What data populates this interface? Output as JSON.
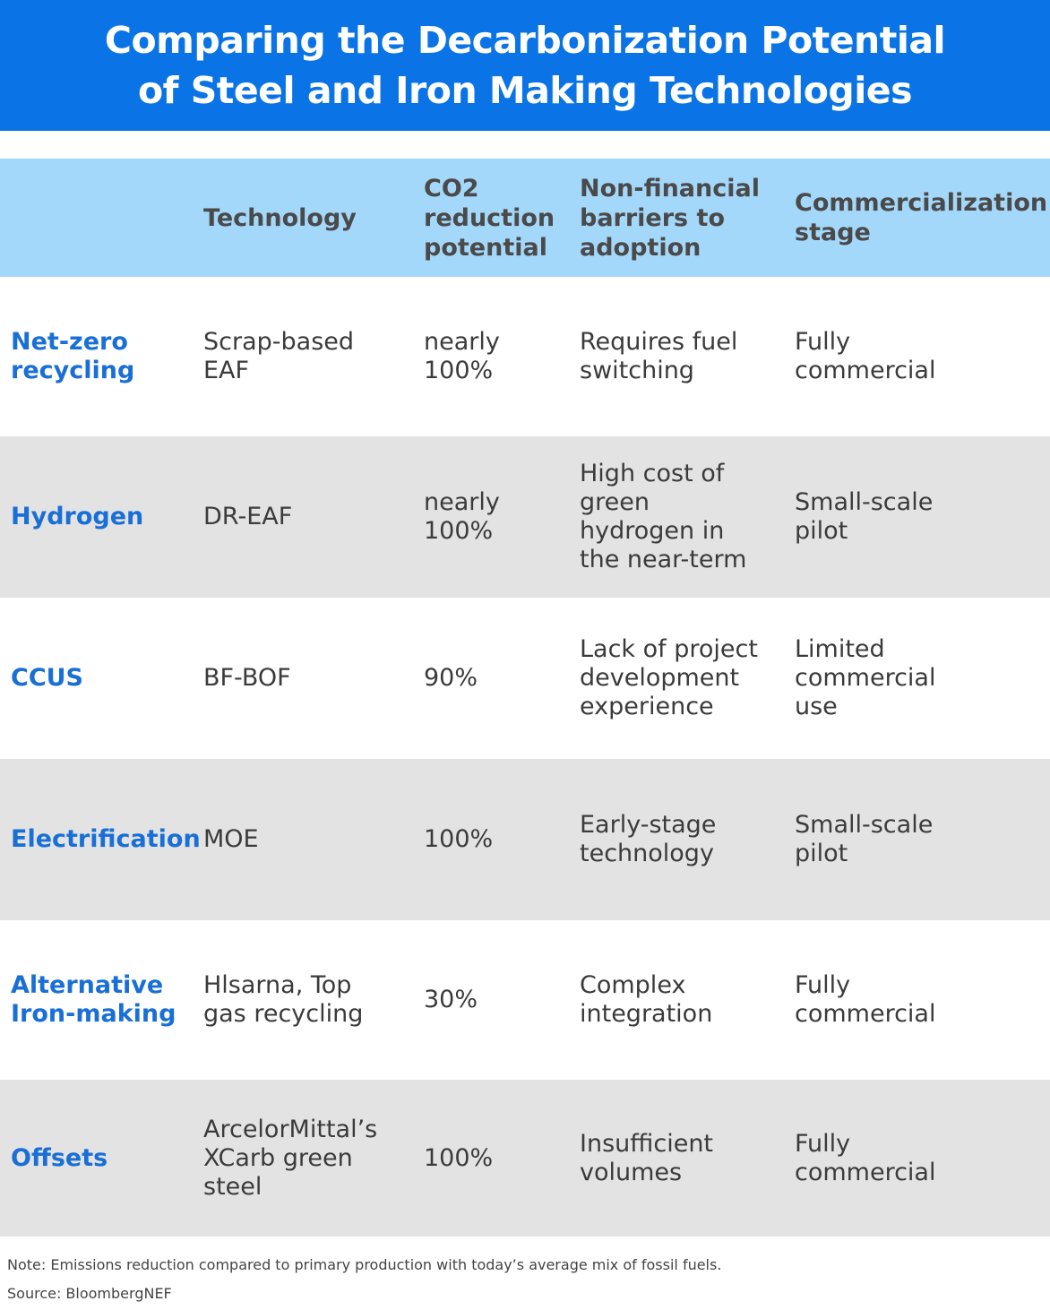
{
  "title": {
    "line1": "Comparing the Decarbonization Potential",
    "line2": "of Steel and Iron Making Technologies"
  },
  "headers": [
    "",
    "Technology",
    "CO2\nreduction\npotential",
    "Non-financial\nbarriers to\nadoption",
    "Commercialization\nstage"
  ],
  "rows": [
    {
      "category": "Net-zero\nrecycling",
      "technology": "Scrap-based\nEAF",
      "reduction": "nearly\n100%",
      "barriers": "Requires fuel\nswitching",
      "stage": "Fully\ncommercial"
    },
    {
      "category": "Hydrogen",
      "technology": "DR-EAF",
      "reduction": "nearly\n100%",
      "barriers": "High cost of\ngreen\nhydrogen in\nthe near-term",
      "stage": "Small-scale\npilot"
    },
    {
      "category": "CCUS",
      "technology": "BF-BOF",
      "reduction": "90%",
      "barriers": "Lack of project\ndevelopment\nexperience",
      "stage": "Limited\ncommercial\nuse"
    },
    {
      "category": "Electrification",
      "technology": "MOE",
      "reduction": "100%",
      "barriers": "Early-stage\ntechnology",
      "stage": "Small-scale\npilot"
    },
    {
      "category": "Alternative\nIron-making",
      "technology": "Hlsarna, Top\ngas recycling",
      "reduction": "30%",
      "barriers": "Complex\nintegration",
      "stage": "Fully\ncommercial"
    },
    {
      "category": "Offsets",
      "technology": "ArcelorMittal’s\nXCarb green\nsteel",
      "reduction": "100%",
      "barriers": "Insufficient\nvolumes",
      "stage": "Fully\ncommercial"
    }
  ],
  "footer": {
    "note": "Note: Emissions reduction compared to primary production with today’s average mix of fossil fuels.",
    "source": "Source: BloombergNEF"
  },
  "colors": {
    "title_bg": "#0a74e6",
    "header_bg": "#a4d8fb",
    "stripe_bg": "#e3e3e3",
    "category_text": "#1a6fd6"
  }
}
